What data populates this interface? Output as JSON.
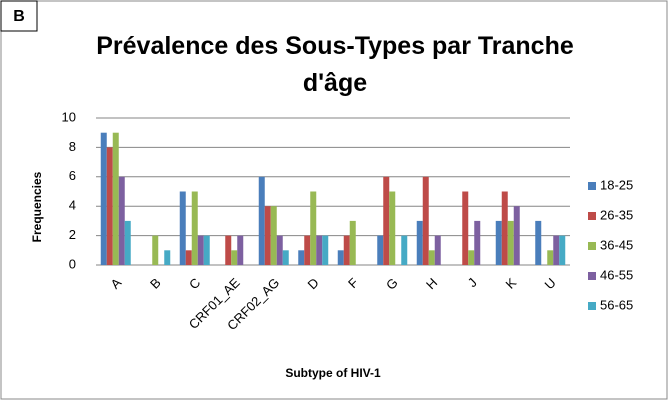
{
  "panel_label": "B",
  "chart_data": {
    "type": "bar",
    "title": "Prévalence des Sous-Types par Tranche d'âge",
    "x_label": "Subtype of HIV-1",
    "y_label": "Frequencies",
    "categories": [
      "A",
      "B",
      "C",
      "CRF01_AE",
      "CRF02_AG",
      "D",
      "F",
      "G",
      "H",
      "J",
      "K",
      "U"
    ],
    "series": [
      {
        "name": "18-25",
        "color": "#4a7ebb",
        "values": [
          9,
          0,
          5,
          0,
          6,
          1,
          1,
          2,
          3,
          0,
          3,
          3
        ]
      },
      {
        "name": "26-35",
        "color": "#be4b48",
        "values": [
          8,
          0,
          1,
          2,
          4,
          2,
          2,
          6,
          6,
          5,
          5,
          0
        ]
      },
      {
        "name": "36-45",
        "color": "#98b954",
        "values": [
          9,
          2,
          5,
          1,
          4,
          5,
          3,
          5,
          1,
          1,
          3,
          1
        ]
      },
      {
        "name": "46-55",
        "color": "#7d60a0",
        "values": [
          6,
          0,
          2,
          2,
          2,
          2,
          0,
          0,
          2,
          3,
          4,
          2
        ]
      },
      {
        "name": "56-65",
        "color": "#46aac5",
        "values": [
          3,
          1,
          2,
          0,
          1,
          2,
          0,
          2,
          0,
          0,
          0,
          2
        ]
      }
    ],
    "ylim": [
      0,
      10
    ],
    "yticks": [
      0,
      2,
      4,
      6,
      8,
      10
    ],
    "grid": true,
    "legend": "right"
  }
}
